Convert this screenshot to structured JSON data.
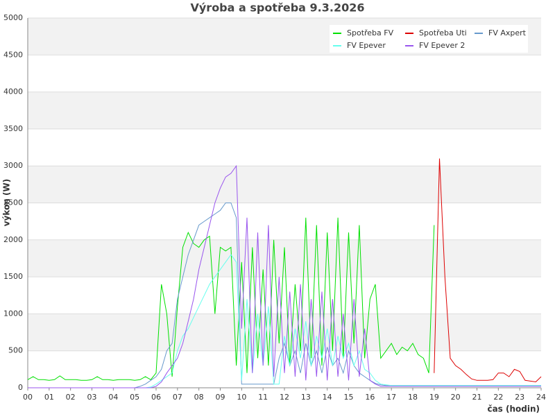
{
  "chart_data": {
    "type": "line",
    "title": "Výroba a spotřeba 9.3.2026",
    "xlabel": "čas (hodin)",
    "ylabel": "výkon (W)",
    "xlim": [
      0,
      24
    ],
    "ylim": [
      0,
      5000
    ],
    "xticks": [
      {
        "value": 0,
        "label": "00"
      },
      {
        "value": 1,
        "label": "01"
      },
      {
        "value": 2,
        "label": "02"
      },
      {
        "value": 3,
        "label": "03"
      },
      {
        "value": 4,
        "label": "04"
      },
      {
        "value": 5,
        "label": "05"
      },
      {
        "value": 6,
        "label": "06"
      },
      {
        "value": 7,
        "label": "07"
      },
      {
        "value": 8,
        "label": "08"
      },
      {
        "value": 9,
        "label": "09"
      },
      10,
      11,
      12,
      13,
      14,
      15,
      16,
      17,
      18,
      19,
      20,
      21,
      22,
      23,
      24
    ],
    "yticks": [
      0,
      500,
      1000,
      1500,
      2000,
      2500,
      3000,
      3500,
      4000,
      4500,
      5000
    ],
    "grid": true,
    "legend": "upper right",
    "x": [
      0,
      0.25,
      0.5,
      0.75,
      1,
      1.25,
      1.5,
      1.75,
      2,
      2.25,
      2.5,
      2.75,
      3,
      3.25,
      3.5,
      3.75,
      4,
      4.25,
      4.5,
      4.75,
      5,
      5.25,
      5.5,
      5.75,
      6,
      6.25,
      6.5,
      6.75,
      7,
      7.25,
      7.5,
      7.75,
      8,
      8.25,
      8.5,
      8.75,
      9,
      9.25,
      9.5,
      9.75,
      10,
      10.25,
      10.5,
      10.75,
      11,
      11.25,
      11.5,
      11.75,
      12,
      12.25,
      12.5,
      12.75,
      13,
      13.25,
      13.5,
      13.75,
      14,
      14.25,
      14.5,
      14.75,
      15,
      15.25,
      15.5,
      15.75,
      16,
      16.25,
      16.5,
      16.75,
      17,
      17.25,
      17.5,
      17.75,
      18,
      18.25,
      18.5,
      18.75,
      19,
      19.25,
      19.5,
      19.75,
      20,
      20.25,
      20.5,
      20.75,
      21,
      21.25,
      21.5,
      21.75,
      22,
      22.25,
      22.5,
      22.75,
      23,
      23.25,
      23.5,
      23.75,
      24
    ],
    "series": [
      {
        "name": "Spotřeba FV",
        "color": "#00e000",
        "values": [
          110,
          150,
          110,
          110,
          100,
          110,
          160,
          110,
          110,
          110,
          100,
          100,
          110,
          150,
          110,
          110,
          100,
          110,
          110,
          110,
          100,
          110,
          150,
          110,
          200,
          1400,
          1000,
          150,
          1100,
          1900,
          2100,
          1950,
          1900,
          2000,
          2050,
          1000,
          1900,
          1850,
          1900,
          300,
          1700,
          200,
          1900,
          400,
          1600,
          300,
          2000,
          600,
          1900,
          300,
          1400,
          500,
          2300,
          400,
          2200,
          300,
          2100,
          500,
          2300,
          400,
          2100,
          600,
          2200,
          400,
          1200,
          1400,
          400,
          500,
          600,
          450,
          550,
          500,
          600,
          450,
          400,
          200,
          2200,
          null,
          null,
          null,
          null,
          null,
          null,
          null,
          null,
          null,
          null,
          null,
          null,
          null,
          null,
          null,
          null,
          null,
          null,
          null,
          null
        ]
      },
      {
        "name": "Spotřeba Uti",
        "color": "#dd0000",
        "values": [
          null,
          null,
          null,
          null,
          null,
          null,
          null,
          null,
          null,
          null,
          null,
          null,
          null,
          null,
          null,
          null,
          null,
          null,
          null,
          null,
          null,
          null,
          null,
          null,
          null,
          null,
          null,
          null,
          null,
          null,
          null,
          null,
          null,
          null,
          null,
          null,
          null,
          null,
          null,
          null,
          null,
          null,
          null,
          null,
          null,
          null,
          null,
          null,
          null,
          null,
          null,
          null,
          null,
          null,
          null,
          null,
          null,
          null,
          null,
          null,
          null,
          null,
          null,
          null,
          null,
          null,
          null,
          null,
          null,
          null,
          null,
          null,
          null,
          null,
          null,
          null,
          200,
          3100,
          1500,
          400,
          300,
          250,
          180,
          120,
          100,
          100,
          100,
          110,
          200,
          200,
          150,
          250,
          220,
          100,
          90,
          80,
          150
        ]
      },
      {
        "name": "FV Axpert",
        "color": "#6699cc",
        "values": [
          0,
          0,
          0,
          0,
          0,
          0,
          0,
          0,
          0,
          0,
          0,
          0,
          0,
          0,
          0,
          0,
          0,
          0,
          0,
          0,
          0,
          20,
          50,
          100,
          150,
          250,
          500,
          600,
          1200,
          1500,
          1800,
          2000,
          2200,
          2250,
          2300,
          2350,
          2400,
          2500,
          2500,
          2300,
          50,
          50,
          50,
          50,
          50,
          50,
          50,
          400,
          600,
          300,
          500,
          200,
          600,
          300,
          500,
          200,
          550,
          300,
          400,
          200,
          500,
          300,
          200,
          150,
          100,
          60,
          40,
          30,
          30,
          30,
          30,
          30,
          30,
          30,
          30,
          30,
          30,
          30,
          30,
          30,
          30,
          30,
          30,
          30,
          30,
          30,
          30,
          30,
          30,
          30,
          30,
          30,
          30,
          30,
          30,
          30,
          30
        ]
      },
      {
        "name": "FV Epever",
        "color": "#66ffee",
        "values": [
          0,
          0,
          0,
          0,
          0,
          0,
          0,
          0,
          0,
          0,
          0,
          0,
          0,
          0,
          0,
          0,
          0,
          0,
          0,
          0,
          0,
          0,
          0,
          10,
          50,
          100,
          150,
          200,
          500,
          700,
          800,
          950,
          1100,
          1250,
          1400,
          1500,
          1600,
          1700,
          1800,
          1700,
          100,
          1200,
          200,
          1000,
          300,
          1100,
          50,
          50,
          700,
          300,
          800,
          400,
          900,
          300,
          700,
          400,
          800,
          300,
          700,
          400,
          600,
          300,
          500,
          250,
          200,
          100,
          50,
          40,
          30,
          30,
          30,
          30,
          30,
          30,
          30,
          30,
          30,
          30,
          30,
          30,
          30,
          30,
          30,
          30,
          30,
          30,
          30,
          30,
          30,
          30,
          30,
          30,
          30,
          30,
          30,
          30,
          30
        ]
      },
      {
        "name": "FV Epever 2",
        "color": "#9955ee",
        "values": [
          0,
          0,
          0,
          0,
          0,
          0,
          0,
          0,
          0,
          0,
          0,
          0,
          0,
          0,
          0,
          0,
          0,
          0,
          0,
          0,
          0,
          0,
          0,
          0,
          20,
          80,
          200,
          300,
          400,
          600,
          900,
          1200,
          1600,
          1900,
          2200,
          2500,
          2700,
          2850,
          2900,
          3000,
          800,
          2300,
          200,
          2100,
          300,
          2200,
          150,
          1500,
          200,
          1300,
          150,
          1400,
          100,
          1200,
          150,
          1300,
          100,
          1200,
          150,
          1000,
          100,
          1200,
          150,
          800,
          100,
          50,
          20,
          20,
          20,
          20,
          20,
          20,
          20,
          20,
          20,
          20,
          20,
          20,
          20,
          20,
          20,
          20,
          20,
          20,
          20,
          20,
          20,
          20,
          20,
          20,
          20,
          20,
          20,
          20,
          20,
          20,
          20
        ]
      }
    ]
  }
}
